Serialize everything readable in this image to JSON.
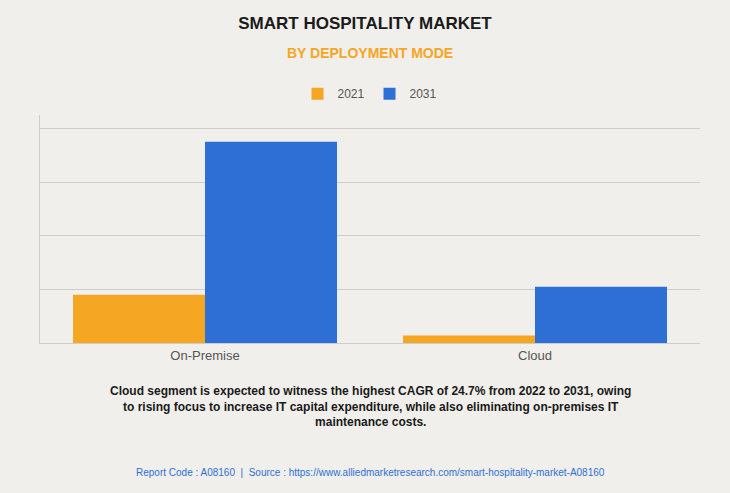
{
  "chart_data": {
    "type": "bar",
    "title": "SMART HOSPITALITY MARKET",
    "subtitle": "BY DEPLOYMENT MODE",
    "categories": [
      "On-Premise",
      "Cloud"
    ],
    "series": [
      {
        "name": "2021",
        "color": "#F5A623",
        "values": [
          1.8,
          0.28
        ]
      },
      {
        "name": "2031",
        "color": "#2E6FD6",
        "values": [
          7.5,
          2.1
        ]
      }
    ],
    "ylim": [
      0,
      8.5
    ],
    "yticks": [
      0,
      2,
      4,
      6,
      8
    ],
    "grid": true,
    "tick_labels": "x",
    "legend": "top",
    "annotations": [
      "Cloud segment is expected to witness the highest CAGR of 24.7% from 2022 to 2031, owing\nto rising focus to increase IT capital expenditure, while also eliminating on-premises IT\nmaintenance costs.",
      "Report Code : A08160  |  Source : https://www.alliedmarketresearch.com/smart-hospitality-market-A08160"
    ]
  }
}
